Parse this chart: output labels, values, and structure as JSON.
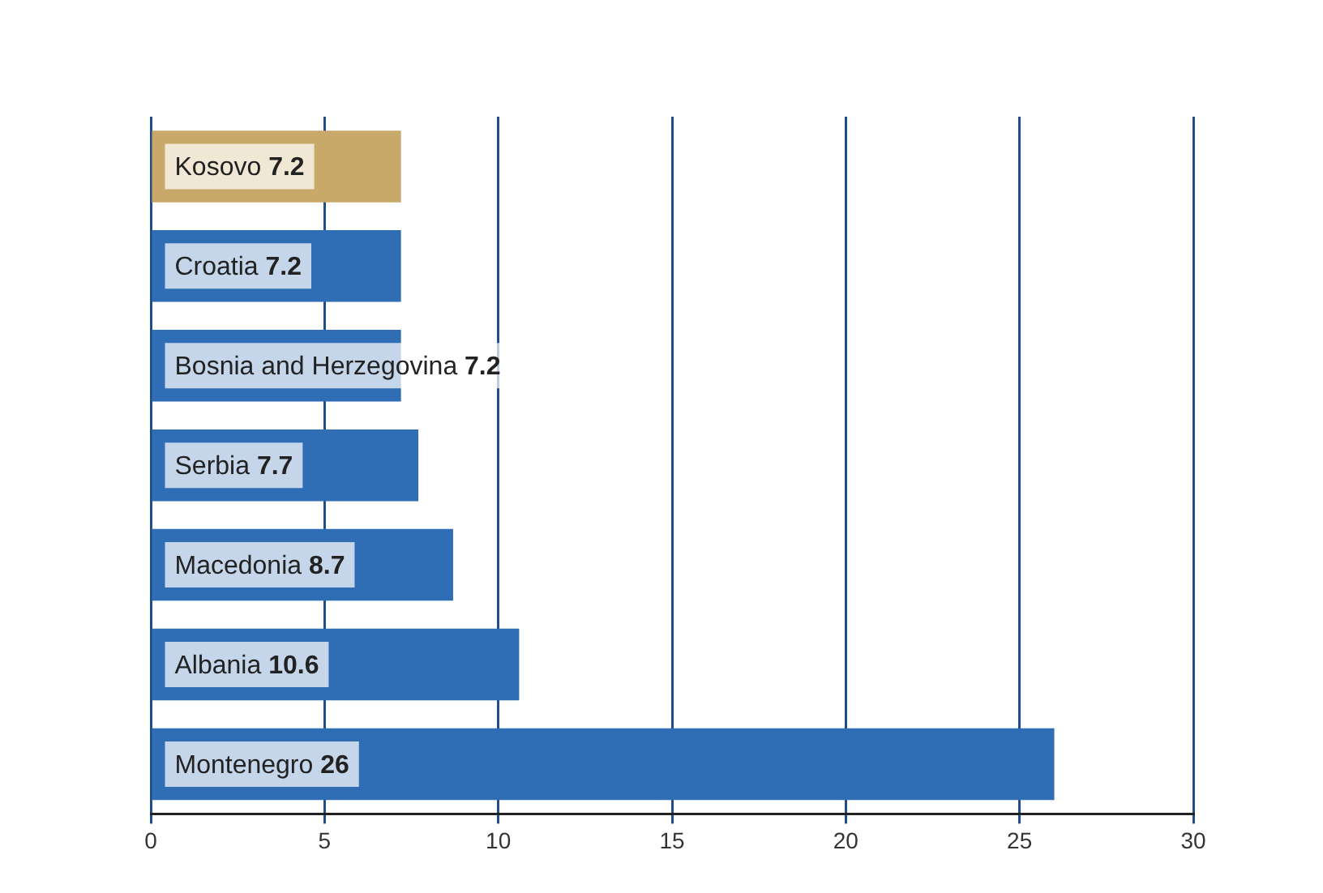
{
  "chart_data": {
    "type": "bar",
    "orientation": "horizontal",
    "categories": [
      "Kosovo",
      "Croatia",
      "Bosnia and Herzegovina",
      "Serbia",
      "Macedonia",
      "Albania",
      "Montenegro"
    ],
    "values": [
      7.2,
      7.2,
      7.2,
      7.7,
      8.7,
      10.6,
      26
    ],
    "colors": [
      "#c8a96a",
      "#2f6db5",
      "#2f6db5",
      "#2f6db5",
      "#2f6db5",
      "#2f6db5",
      "#2f6db5"
    ],
    "xlim": [
      0,
      30
    ],
    "xticks": [
      0,
      5,
      10,
      15,
      20,
      25,
      30
    ],
    "grid": "x",
    "data_labels": true
  }
}
